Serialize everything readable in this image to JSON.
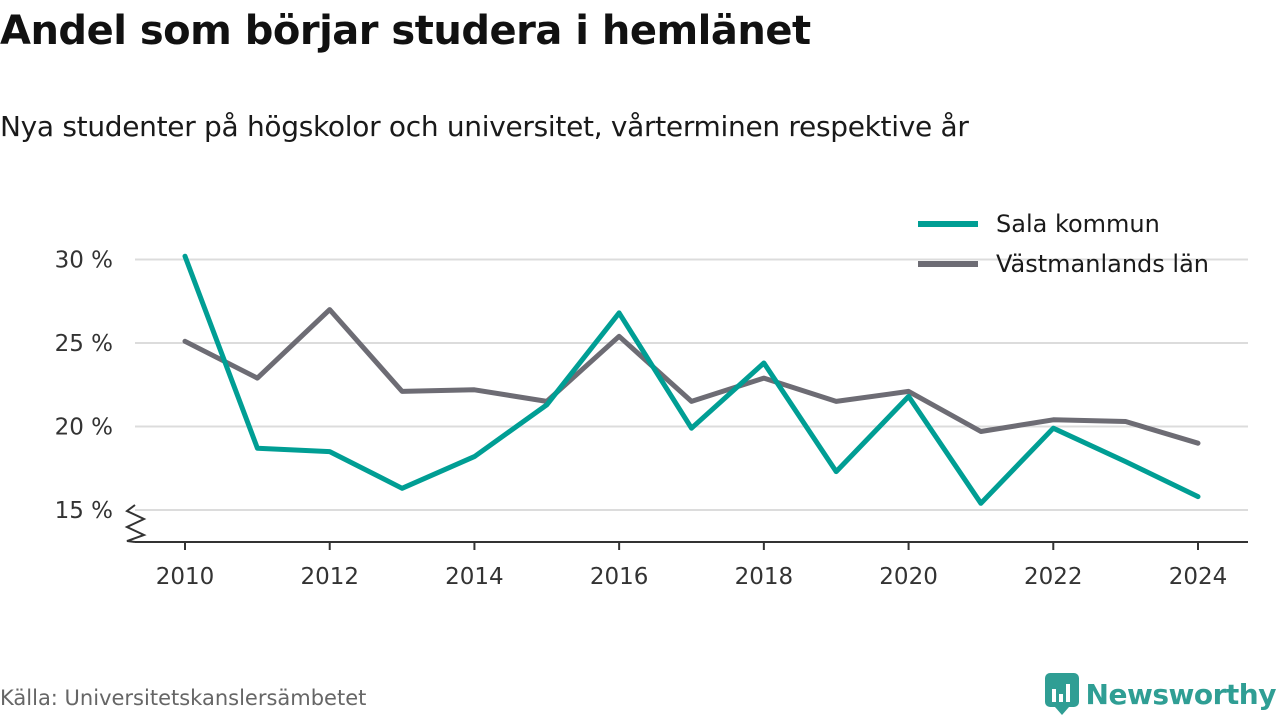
{
  "title": "Andel som börjar studera i hemlänet",
  "subtitle": "Nya studenter på högskolor och universitet, vårterminen respektive år",
  "source": "Källa: Universitetskanslersämbetet",
  "brand": "Newsworthy",
  "colors": {
    "sala": "#009e94",
    "lan": "#6d6c74",
    "grid": "#dcdcdc",
    "axis": "#333333",
    "brand": "#2f9e94"
  },
  "chart_data": {
    "type": "line",
    "x": [
      2010,
      2011,
      2012,
      2013,
      2014,
      2015,
      2016,
      2017,
      2018,
      2019,
      2020,
      2021,
      2022,
      2023,
      2024
    ],
    "x_ticks": [
      2010,
      2012,
      2014,
      2016,
      2018,
      2020,
      2022,
      2024
    ],
    "x_tick_labels": [
      "2010",
      "2012",
      "2014",
      "2016",
      "2018",
      "2020",
      "2022",
      "2024"
    ],
    "y_ticks": [
      15,
      20,
      25,
      30
    ],
    "y_tick_labels": [
      "15 %",
      "20 %",
      "25 %",
      "30 %"
    ],
    "ylim": [
      13,
      30
    ],
    "y_axis_break": true,
    "grid": true,
    "legend_position": "top-right",
    "series": [
      {
        "name": "Sala kommun",
        "color": "#009e94",
        "values": [
          30.2,
          18.7,
          18.5,
          16.3,
          18.2,
          21.3,
          26.8,
          19.9,
          23.8,
          17.3,
          21.8,
          15.4,
          19.9,
          17.9,
          15.8
        ]
      },
      {
        "name": "Västmanlands län",
        "color": "#6d6c74",
        "values": [
          25.1,
          22.9,
          27.0,
          22.1,
          22.2,
          21.5,
          25.4,
          21.5,
          22.9,
          21.5,
          22.1,
          19.7,
          20.4,
          20.3,
          19.0
        ]
      }
    ]
  }
}
